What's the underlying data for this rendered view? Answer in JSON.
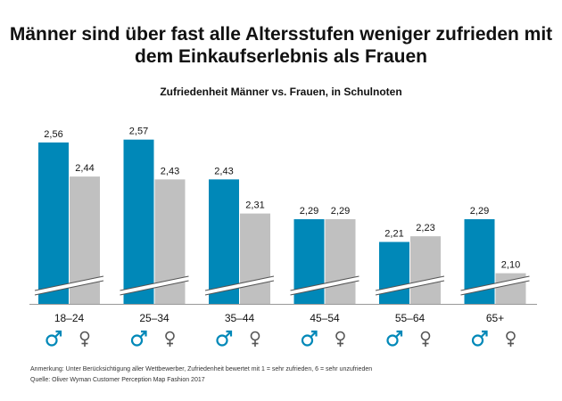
{
  "title_line1": "Männer sind über fast alle Altersstufen weniger zufrieden mit",
  "title_line2": "dem Einkaufserlebnis als Frauen",
  "subtitle": "Zufriedenheit  Männer  vs. Frauen, in Schulnoten",
  "footnote": "Anmerkung: Unter Berücksichtigung aller Wettbewerber, Zufriedenheit bewertet mit 1 = sehr zufrieden, 6 = sehr unzufrieden",
  "source": "Quelle: Oliver Wyman Customer Perception Map Fashion 2017",
  "colors": {
    "men": "#0088b8",
    "women": "#c0c0c0"
  },
  "icons": {
    "men": "male-symbol-icon",
    "women": "female-symbol-icon"
  },
  "chart_data": {
    "type": "bar",
    "categories": [
      "18–24",
      "25–34",
      "35–44",
      "45–54",
      "55–64",
      "65+"
    ],
    "series": [
      {
        "values": [
          2.56,
          2.57,
          2.43,
          2.29,
          2.21,
          2.29
        ],
        "labels": [
          "2,56",
          "2,57",
          "2,43",
          "2,29",
          "2,21",
          "2,29"
        ]
      },
      {
        "values": [
          2.44,
          2.43,
          2.31,
          2.29,
          2.23,
          2.1
        ],
        "labels": [
          "2,44",
          "2,43",
          "2,31",
          "2,29",
          "2,23",
          "2,10"
        ]
      }
    ],
    "axis_break": true,
    "legend": "per-group gender symbols below category labels",
    "grid": false
  }
}
